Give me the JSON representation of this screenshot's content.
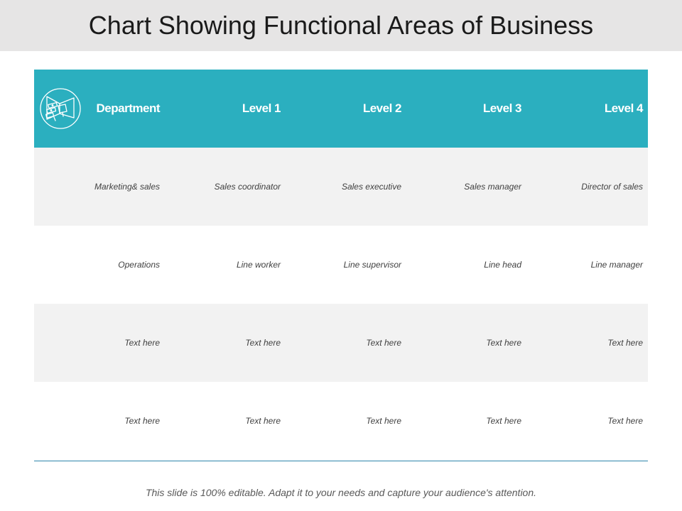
{
  "title": "Chart Showing Functional Areas of Business",
  "table": {
    "headers": [
      "Department",
      "Level 1",
      "Level 2",
      "Level 3",
      "Level 4"
    ],
    "rows": [
      [
        "Marketing& sales",
        "Sales coordinator",
        "Sales executive",
        "Sales manager",
        "Director of sales"
      ],
      [
        "Operations",
        "Line worker",
        "Line supervisor",
        "Line head",
        "Line manager"
      ],
      [
        "Text here",
        "Text here",
        "Text here",
        "Text here",
        "Text here"
      ],
      [
        "Text here",
        "Text here",
        "Text here",
        "Text here",
        "Text here"
      ]
    ]
  },
  "header_icon": "marketing-megaphone-icon",
  "footer": "This slide is 100% editable. Adapt it to your needs and capture your audience's attention.",
  "colors": {
    "header_bg": "#2bafbf",
    "title_bar_bg": "#e6e5e5",
    "shaded_row_bg": "#f2f2f2",
    "rule": "#2e86ab"
  }
}
